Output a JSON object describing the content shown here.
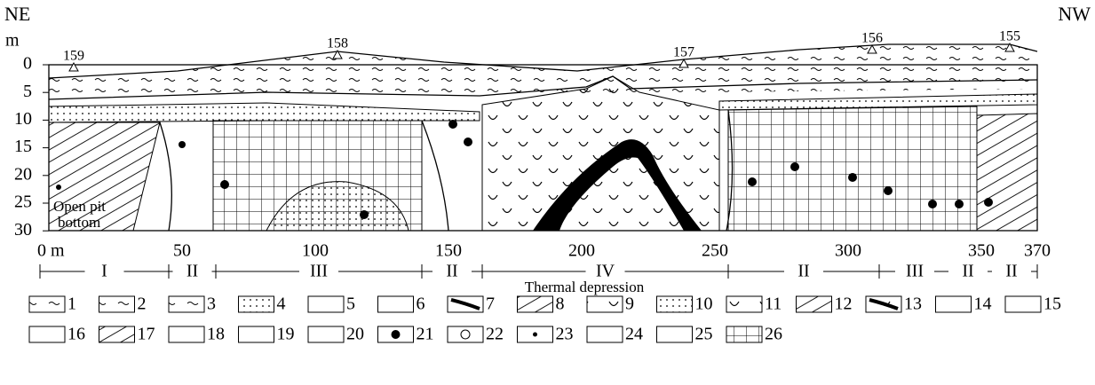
{
  "header": {
    "left": "NE",
    "right": "NW",
    "depth_unit": "m"
  },
  "depth_ticks": [
    "0",
    "5",
    "10",
    "15",
    "20",
    "25",
    "30"
  ],
  "distance_ticks": [
    "0 m",
    "50",
    "100",
    "150",
    "200",
    "250",
    "300",
    "350",
    "370"
  ],
  "sites": [
    "159",
    "158",
    "157",
    "156",
    "155"
  ],
  "zones": [
    "I",
    "II",
    "III",
    "II",
    "IV",
    "II",
    "III",
    "II",
    "II"
  ],
  "zone_caption": "Thermal depression",
  "annotation_lines": [
    "Open pit",
    "bottom"
  ],
  "legend": [
    "1",
    "2",
    "3",
    "4",
    "5",
    "6",
    "7",
    "8",
    "9",
    "10",
    "11",
    "12",
    "13",
    "14",
    "15",
    "16",
    "17",
    "18",
    "19",
    "20",
    "21",
    "22",
    "23",
    "24",
    "25",
    "26"
  ]
}
